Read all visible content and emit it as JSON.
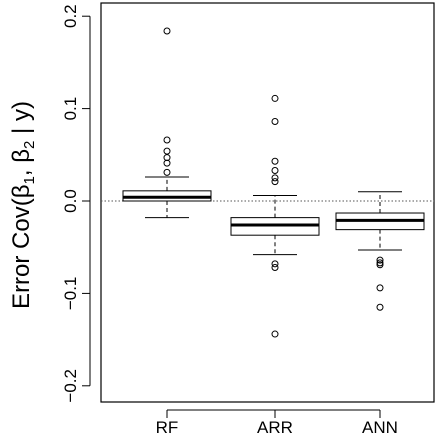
{
  "chart_data": {
    "type": "box",
    "title": "",
    "xlabel": "",
    "ylabel": {
      "main": "Error Cov(",
      "beta": "β",
      "sub1": "1",
      "comma": ", ",
      "sub2": "2",
      "rest": " | y)"
    },
    "ylim": [
      -0.22,
      0.2
    ],
    "yticks": [
      -0.2,
      -0.1,
      0.0,
      0.1,
      0.2
    ],
    "ytick_labels": [
      "−0.2",
      "−0.1",
      "0.0",
      "0.1",
      "0.2"
    ],
    "reference_line": 0.0,
    "categories": [
      "RF",
      "ARR",
      "ANN"
    ],
    "boxes": [
      {
        "name": "RF",
        "whisker_low": -0.018,
        "q1": 0.0,
        "median": 0.004,
        "q3": 0.011,
        "whisker_high": 0.026,
        "outliers": [
          0.184,
          0.066,
          0.054,
          0.047,
          0.041,
          0.031
        ]
      },
      {
        "name": "ARR",
        "whisker_low": -0.058,
        "q1": -0.037,
        "median": -0.026,
        "q3": -0.018,
        "whisker_high": 0.006,
        "outliers": [
          0.111,
          0.086,
          0.043,
          0.033,
          0.025,
          0.021,
          -0.068,
          -0.072,
          -0.144
        ]
      },
      {
        "name": "ANN",
        "whisker_low": -0.053,
        "q1": -0.031,
        "median": -0.021,
        "q3": -0.013,
        "whisker_high": 0.01,
        "outliers": [
          -0.064,
          -0.067,
          -0.069,
          -0.094,
          -0.115
        ]
      }
    ]
  }
}
